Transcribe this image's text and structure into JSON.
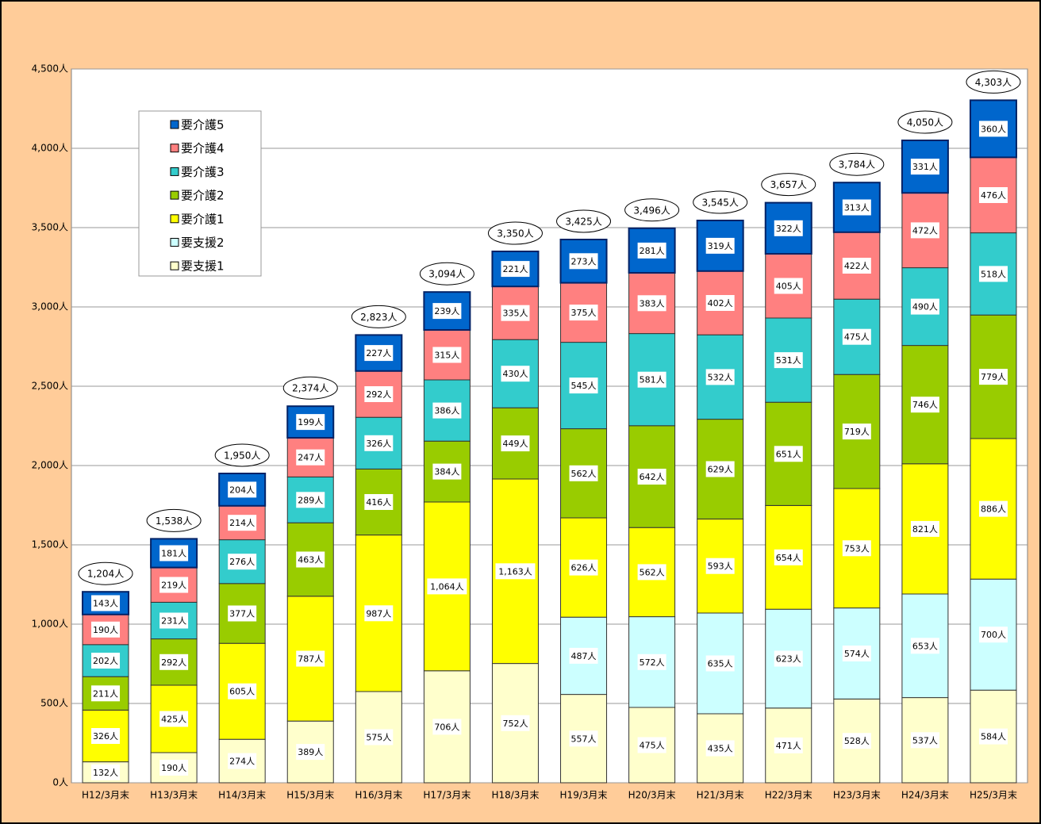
{
  "chart_data": {
    "type": "bar",
    "stacked": true,
    "categories": [
      "H12/3月末",
      "H13/3月末",
      "H14/3月末",
      "H15/3月末",
      "H16/3月末",
      "H17/3月末",
      "H18/3月末",
      "H19/3月末",
      "H20/3月末",
      "H21/3月末",
      "H22/3月末",
      "H23/3月末",
      "H24/3月末",
      "H25/3月末"
    ],
    "series": [
      {
        "name": "要支援1",
        "color": "#FFFFCC",
        "values": [
          132,
          190,
          274,
          389,
          575,
          706,
          752,
          557,
          475,
          435,
          471,
          528,
          537,
          584
        ],
        "value_labels": [
          "132人",
          "190人",
          "274人",
          "389人",
          "575人",
          "706人",
          "752人",
          "557人",
          "475人",
          "435人",
          "471人",
          "528人",
          "537人",
          "584人"
        ]
      },
      {
        "name": "要支援2",
        "color": "#CCFFFF",
        "values": [
          null,
          null,
          null,
          null,
          null,
          null,
          null,
          487,
          572,
          635,
          623,
          574,
          653,
          700
        ],
        "value_labels": [
          null,
          null,
          null,
          null,
          null,
          null,
          null,
          "487人",
          "572人",
          "635人",
          "623人",
          "574人",
          "653人",
          "700人"
        ]
      },
      {
        "name": "要介護1",
        "color": "#FFFF00",
        "values": [
          326,
          425,
          605,
          787,
          987,
          1064,
          1163,
          626,
          562,
          593,
          654,
          753,
          821,
          886
        ],
        "value_labels": [
          "326人",
          "425人",
          "605人",
          "787人",
          "987人",
          "1,064人",
          "1,163人",
          "626人",
          "562人",
          "593人",
          "654人",
          "753人",
          "821人",
          "886人"
        ]
      },
      {
        "name": "要介護2",
        "color": "#99CC00",
        "values": [
          211,
          292,
          377,
          463,
          416,
          384,
          449,
          562,
          642,
          629,
          651,
          719,
          746,
          779
        ],
        "value_labels": [
          "211人",
          "292人",
          "377人",
          "463人",
          "416人",
          "384人",
          "449人",
          "562人",
          "642人",
          "629人",
          "651人",
          "719人",
          "746人",
          "779人"
        ]
      },
      {
        "name": "要介護3",
        "color": "#33CCCC",
        "values": [
          202,
          231,
          276,
          289,
          326,
          386,
          430,
          545,
          581,
          532,
          531,
          475,
          490,
          518
        ],
        "value_labels": [
          "202人",
          "231人",
          "276人",
          "289人",
          "326人",
          "386人",
          "430人",
          "545人",
          "581人",
          "532人",
          "531人",
          "475人",
          "490人",
          "518人"
        ]
      },
      {
        "name": "要介護4",
        "color": "#FF8080",
        "values": [
          190,
          219,
          214,
          247,
          292,
          315,
          335,
          375,
          383,
          402,
          405,
          422,
          472,
          476
        ],
        "value_labels": [
          "190人",
          "219人",
          "214人",
          "247人",
          "292人",
          "315人",
          "335人",
          "375人",
          "383人",
          "402人",
          "405人",
          "422人",
          "472人",
          "476人"
        ]
      },
      {
        "name": "要介護5",
        "color": "#0066CC",
        "values": [
          143,
          181,
          204,
          199,
          227,
          239,
          221,
          273,
          281,
          319,
          322,
          313,
          331,
          360
        ],
        "value_labels": [
          "143人",
          "181人",
          "204人",
          "199人",
          "227人",
          "239人",
          "221人",
          "273人",
          "281人",
          "319人",
          "322人",
          "313人",
          "331人",
          "360人"
        ]
      }
    ],
    "totals": {
      "values": [
        1204,
        1538,
        1950,
        2374,
        2823,
        3094,
        3350,
        3425,
        3496,
        3545,
        3657,
        3784,
        4050,
        4303
      ],
      "value_labels": [
        "1,204人",
        "1,538人",
        "1,950人",
        "2,374人",
        "2,823人",
        "3,094人",
        "3,350人",
        "3,425人",
        "3,496人",
        "3,545人",
        "3,657人",
        "3,784人",
        "4,050人",
        "4,303人"
      ]
    },
    "ylim": [
      0,
      4500
    ],
    "yticks": [
      {
        "value": 0,
        "label": "0人"
      },
      {
        "value": 500,
        "label": "500人"
      },
      {
        "value": 1000,
        "label": "1,000人"
      },
      {
        "value": 1500,
        "label": "1,500人"
      },
      {
        "value": 2000,
        "label": "2,000人"
      },
      {
        "value": 2500,
        "label": "2,500人"
      },
      {
        "value": 3000,
        "label": "3,000人"
      },
      {
        "value": 3500,
        "label": "3,500人"
      },
      {
        "value": 4000,
        "label": "4,000人"
      },
      {
        "value": 4500,
        "label": "4,500人"
      }
    ],
    "grid": true,
    "legend": "upper left"
  }
}
